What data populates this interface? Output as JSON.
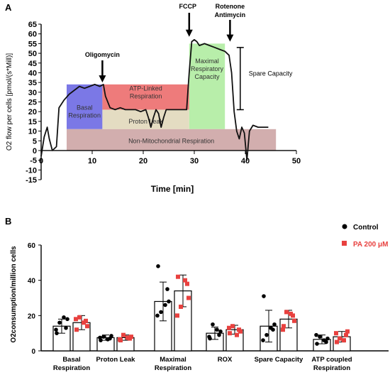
{
  "chart_data": [
    {
      "type": "line",
      "panel_label": "A",
      "xlabel": "Time [min]",
      "ylabel": "O2 flow per cells [pmol/(s*Mill)]",
      "xlim": [
        0,
        50
      ],
      "ylim": [
        -15,
        65
      ],
      "x_ticks": [
        0,
        10,
        20,
        30,
        40,
        50
      ],
      "y_ticks": [
        -15,
        -10,
        -5,
        0,
        5,
        10,
        15,
        20,
        25,
        30,
        35,
        40,
        45,
        50,
        55,
        60,
        65
      ],
      "grid": false,
      "series": [
        {
          "x": [
            0,
            0.6,
            1.2,
            1.6,
            2.2,
            3,
            3.5,
            4.5,
            5.5,
            6.5,
            7.5,
            8.5,
            9.5,
            10.5,
            11.5,
            12.2,
            12.6,
            13.5,
            14.5,
            15.5,
            16.5,
            17.5,
            18.5,
            19.5,
            20.5,
            21,
            21.5,
            22,
            22.5,
            23,
            23.5,
            24,
            24.5,
            25.5,
            26.5,
            27.5,
            28.5,
            29,
            29.5,
            30,
            30.5,
            31,
            32,
            33,
            34,
            35,
            36,
            36.8,
            37.3,
            37.8,
            38.3,
            38.8,
            39.3,
            39.8,
            40.3,
            40.8,
            41.5,
            42.5,
            43.5,
            44.5
          ],
          "y": [
            -3,
            7,
            12,
            6,
            0,
            2,
            22,
            26,
            29,
            31,
            33,
            32,
            33,
            34,
            33,
            34,
            28,
            22,
            21,
            22,
            21,
            21,
            21,
            20,
            21,
            17,
            12,
            17,
            21,
            19,
            12,
            17,
            21,
            21,
            21,
            21,
            21,
            40,
            56,
            57,
            56,
            54,
            55,
            54,
            53,
            52,
            51,
            49,
            40,
            20,
            10,
            6,
            12,
            9,
            -5,
            10,
            13,
            12,
            12,
            12
          ]
        }
      ],
      "regions": [
        {
          "label": "Basal Respiration",
          "x": [
            5,
            12
          ],
          "y": [
            11,
            34
          ],
          "color": "#7b78e6"
        },
        {
          "label": "ATP-Linked Respiration",
          "x": [
            12,
            29
          ],
          "y": [
            21,
            34
          ],
          "color": "#ee7b7b"
        },
        {
          "label": "Proton Leak",
          "x": [
            12,
            29
          ],
          "y": [
            11,
            21
          ],
          "color": "#e4dcc2"
        },
        {
          "label": "Maximal Respiratory Capacity",
          "x": [
            29,
            36
          ],
          "y": [
            11,
            55
          ],
          "color": "#b8eeaa"
        },
        {
          "label": "Non-Mitochondrial Respiration",
          "x": [
            5,
            46
          ],
          "y": [
            0,
            11
          ],
          "color": "#d2aeae"
        }
      ],
      "annotations": [
        {
          "label": "Oligomycin",
          "x": 12
        },
        {
          "label": "FCCP",
          "x": 29
        },
        {
          "label": "Rotenone",
          "label2": "Antimycin",
          "x": 37
        },
        {
          "label": "Spare Capacity",
          "x": 39,
          "y_range": [
            21,
            53
          ]
        }
      ]
    },
    {
      "type": "bar",
      "panel_label": "B",
      "ylabel": "O2consumption/million cells",
      "ylim": [
        0,
        60
      ],
      "y_ticks": [
        0,
        20,
        40,
        60
      ],
      "categories": [
        [
          "Basal",
          "Respiration"
        ],
        [
          "Proton Leak"
        ],
        [
          "Maximal",
          "Respiration"
        ],
        [
          "ROX"
        ],
        [
          "Spare Capacity"
        ],
        [
          "ATP coupled",
          "Respiration"
        ]
      ],
      "legend_position": "top-right",
      "series": [
        {
          "name": "Control",
          "color": "#000000",
          "values": [
            14,
            7.5,
            28,
            10,
            14,
            6.5
          ],
          "error": [
            4,
            1.5,
            11,
            3.5,
            9,
            2.5
          ],
          "points": [
            [
              10,
              13,
              16,
              18,
              12,
              19
            ],
            [
              6,
              7,
              8,
              8.5,
              7.5,
              6.5
            ],
            [
              48,
              35,
              22,
              28,
              20,
              26
            ],
            [
              7,
              9,
              15,
              11,
              8,
              12
            ],
            [
              31,
              12,
              9,
              15,
              6,
              13
            ],
            [
              4,
              5,
              8,
              7,
              9,
              6
            ]
          ]
        },
        {
          "name": "PA 200 μM",
          "color": "#e8413f",
          "values": [
            16,
            7.5,
            34,
            12,
            18,
            8
          ],
          "error": [
            4,
            1.5,
            9,
            2.5,
            5,
            3
          ],
          "points": [
            [
              12,
              17,
              19,
              14,
              18,
              16
            ],
            [
              6,
              7,
              9,
              8,
              6.5,
              7.5
            ],
            [
              42,
              38,
              25,
              30,
              20,
              40
            ],
            [
              10,
              12,
              14,
              11,
              13,
              9
            ],
            [
              14,
              20,
              22,
              17,
              12,
              21
            ],
            [
              5,
              9,
              7,
              11,
              10,
              6
            ]
          ]
        }
      ]
    }
  ]
}
